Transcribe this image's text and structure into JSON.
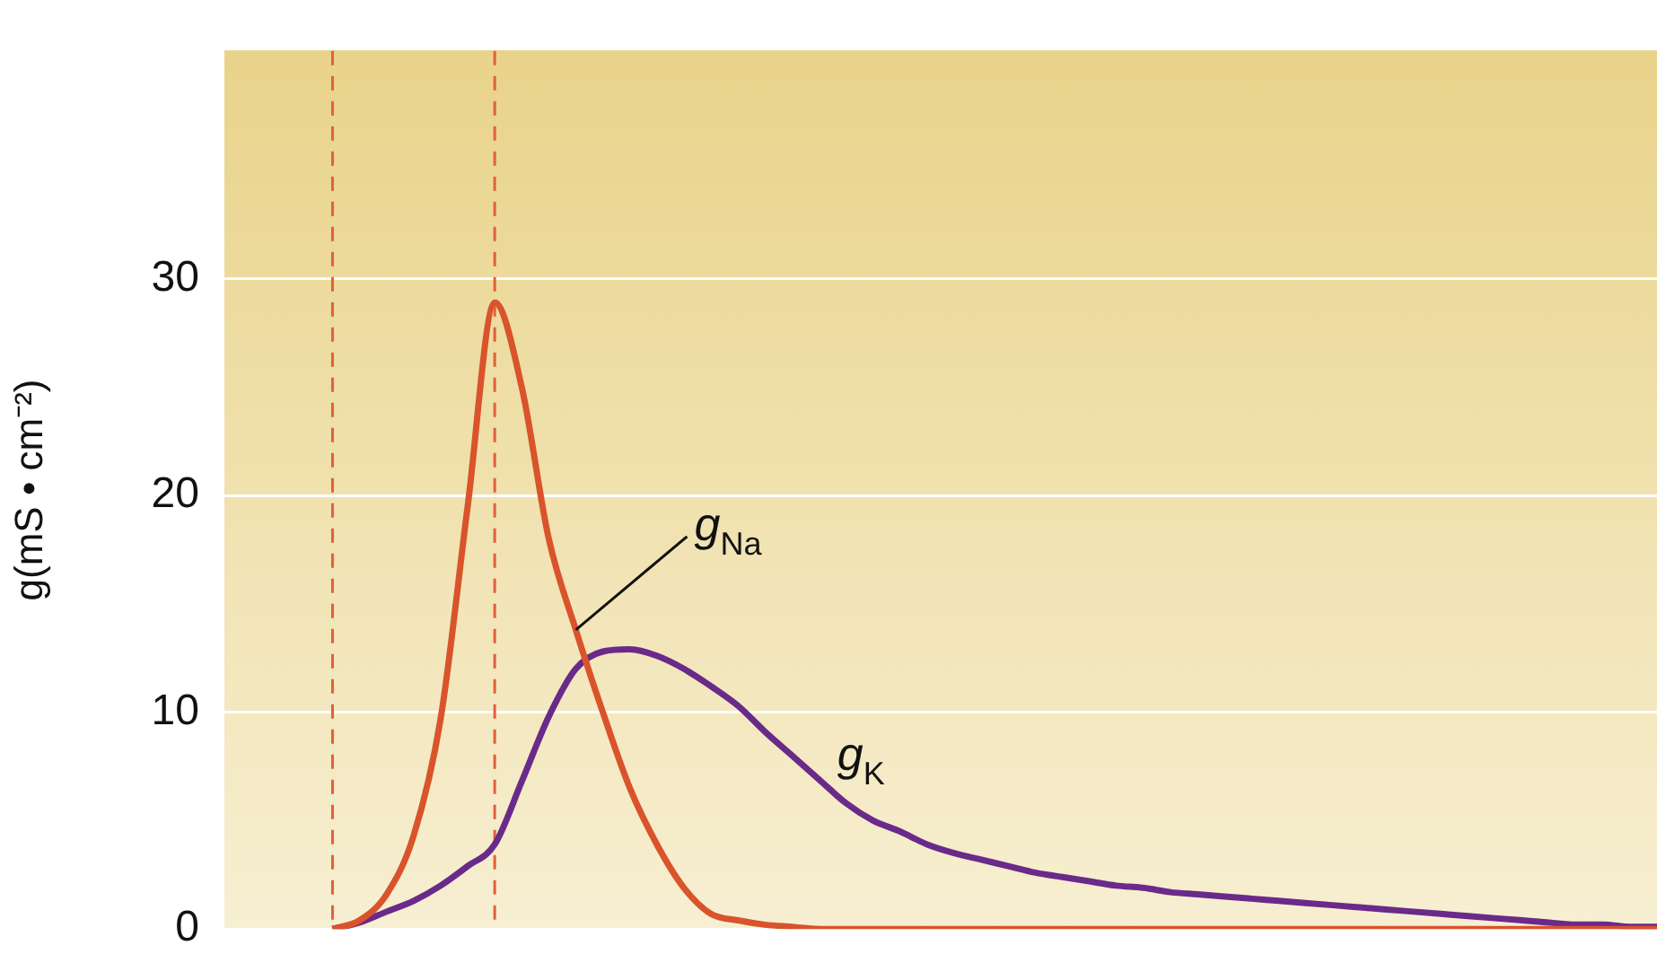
{
  "chart_data": {
    "type": "line",
    "ylabel": "g(mS • cm⁻²)",
    "categories": [
      null,
      null,
      null,
      null,
      null,
      null,
      null,
      null,
      null,
      null,
      null,
      null,
      null,
      null,
      null,
      null,
      null,
      null,
      null,
      null,
      null,
      null,
      null,
      null,
      null,
      null,
      null,
      null,
      null,
      null,
      null,
      null,
      null,
      null,
      null,
      null,
      null,
      null,
      null,
      null,
      null,
      null,
      null,
      null,
      null,
      null,
      null,
      null,
      null,
      null,
      null,
      null,
      null,
      null
    ],
    "ylim": [
      0,
      40.5
    ],
    "yticks": [
      0,
      10,
      20,
      30
    ],
    "tick_labels": "y",
    "grid": "y",
    "legend": false,
    "marker": "none",
    "series": [
      {
        "color": "#d9532b",
        "values": [
          null,
          null,
          null,
          null,
          0,
          0.4,
          1.6,
          4.3,
          9.7,
          19.5,
          28.9,
          25.0,
          18.0,
          13.8,
          10.0,
          6.5,
          3.9,
          1.9,
          0.7,
          0.4,
          0.2,
          0.1,
          0,
          0,
          0,
          0,
          0,
          0,
          0,
          0,
          0,
          0,
          0,
          0,
          0,
          0,
          0,
          0,
          0,
          0,
          0,
          0,
          0,
          0,
          0,
          0,
          0,
          0,
          0,
          0,
          0,
          0,
          0,
          0
        ]
      },
      {
        "color": "#6a2a8a",
        "values": [
          null,
          null,
          null,
          null,
          0,
          0.3,
          0.8,
          1.3,
          2.0,
          2.9,
          3.9,
          6.8,
          9.8,
          12.0,
          12.8,
          12.9,
          12.6,
          12.0,
          11.2,
          10.3,
          9.1,
          8.0,
          6.9,
          5.8,
          5.0,
          4.5,
          3.9,
          3.5,
          3.2,
          2.9,
          2.6,
          2.4,
          2.2,
          2.0,
          1.9,
          1.7,
          1.6,
          1.5,
          1.4,
          1.3,
          1.2,
          1.1,
          1.0,
          0.9,
          0.8,
          0.7,
          0.6,
          0.5,
          0.4,
          0.3,
          0.2,
          0.2,
          0.1,
          0.1
        ]
      }
    ],
    "annotations": [
      "g$_{Na}$",
      "g$_{K}$"
    ]
  }
}
